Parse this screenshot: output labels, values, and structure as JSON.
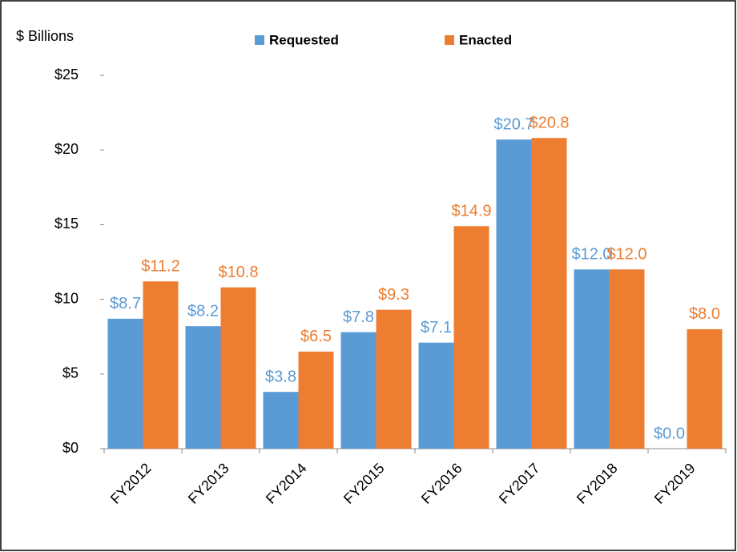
{
  "chart_data": {
    "type": "bar",
    "y_axis_label": "$ Billions",
    "categories": [
      "FY2012",
      "FY2013",
      "FY2014",
      "FY2015",
      "FY2016",
      "FY2017",
      "FY2018",
      "FY2019"
    ],
    "series": [
      {
        "name": "Requested",
        "color": "#5b9bd5",
        "values": [
          8.7,
          8.2,
          3.8,
          7.8,
          7.1,
          20.7,
          12.0,
          0.0
        ],
        "value_labels": [
          "$8.7",
          "$8.2",
          "$3.8",
          "$7.8",
          "$7.1",
          "$20.7",
          "$12.0",
          "$0.0"
        ]
      },
      {
        "name": "Enacted",
        "color": "#ed7d31",
        "values": [
          11.2,
          10.8,
          6.5,
          9.3,
          14.9,
          20.8,
          12.0,
          8.0
        ],
        "value_labels": [
          "$11.2",
          "$10.8",
          "$6.5",
          "$9.3",
          "$14.9",
          "$20.8",
          "$12.0",
          "$8.0"
        ]
      }
    ],
    "ylim": [
      0,
      25
    ],
    "yticks": [
      {
        "value": 0,
        "label": "$0"
      },
      {
        "value": 5,
        "label": "$5"
      },
      {
        "value": 10,
        "label": "$10"
      },
      {
        "value": 15,
        "label": "$15"
      },
      {
        "value": 20,
        "label": "$20"
      },
      {
        "value": 25,
        "label": "$25"
      }
    ],
    "legend": "top"
  }
}
